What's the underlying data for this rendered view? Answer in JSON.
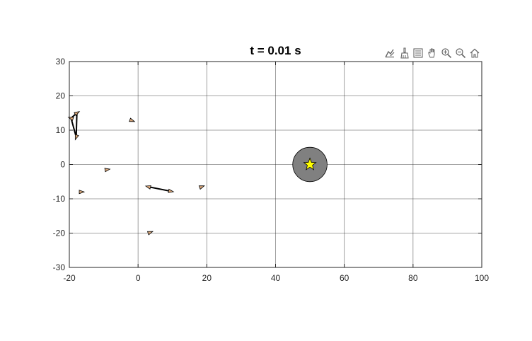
{
  "chart_data": {
    "type": "scatter",
    "title": "t = 0.01 s",
    "xlabel": "",
    "ylabel": "",
    "xlim": [
      -20,
      100
    ],
    "ylim": [
      -30,
      30
    ],
    "xticks": [
      -20,
      0,
      20,
      40,
      60,
      80,
      100
    ],
    "yticks": [
      -30,
      -20,
      -10,
      0,
      10,
      20,
      30
    ],
    "x_tick_labels": [
      "-20",
      "0",
      "20",
      "40",
      "60",
      "80",
      "100"
    ],
    "y_tick_labels": [
      "-30",
      "-20",
      "-10",
      "0",
      "10",
      "20",
      "30"
    ],
    "grid": true,
    "target": {
      "x": 50,
      "y": 0,
      "radius": 5,
      "fill": "#808080",
      "marker": "star",
      "marker_color": "#ffff00"
    },
    "agents": [
      {
        "x": -19.5,
        "y": 13.5,
        "heading_deg": 160
      },
      {
        "x": -17.8,
        "y": 15.0,
        "heading_deg": 30
      },
      {
        "x": -18.0,
        "y": 8.0,
        "heading_deg": 250
      },
      {
        "x": -1.8,
        "y": 12.8,
        "heading_deg": -20
      },
      {
        "x": -9.0,
        "y": -1.5,
        "heading_deg": 10
      },
      {
        "x": -16.5,
        "y": -8.0,
        "heading_deg": 0
      },
      {
        "x": 3.0,
        "y": -6.5,
        "heading_deg": 165
      },
      {
        "x": 9.5,
        "y": -7.8,
        "heading_deg": -10
      },
      {
        "x": 18.5,
        "y": -6.5,
        "heading_deg": 20
      },
      {
        "x": 3.5,
        "y": -19.8,
        "heading_deg": 20
      }
    ],
    "links": [
      {
        "from": 0,
        "to": 1
      },
      {
        "from": 1,
        "to": 2
      },
      {
        "from": 0,
        "to": 2
      },
      {
        "from": 6,
        "to": 7
      }
    ]
  },
  "colors": {
    "agent_fill": "#d9a77a",
    "agent_edge": "#000000",
    "link": "#000000",
    "grid": "#262626"
  },
  "toolbar": {
    "icons": [
      "data-tips-icon",
      "brush-icon",
      "legend-icon",
      "pan-icon",
      "zoom-in-icon",
      "zoom-out-icon",
      "home-icon"
    ]
  }
}
